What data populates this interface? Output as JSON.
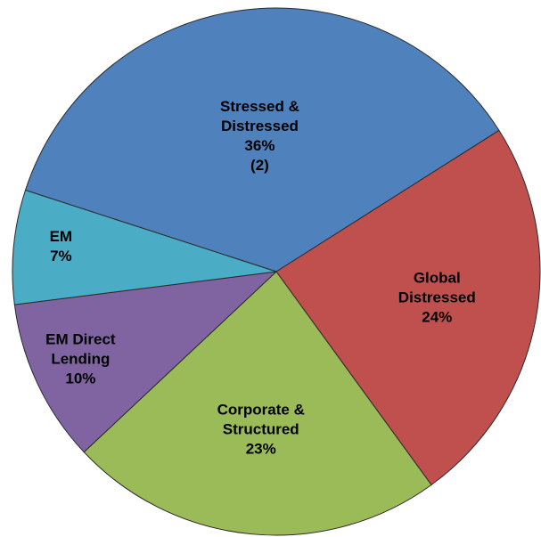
{
  "chart_data": {
    "type": "pie",
    "categories": [
      "Stressed & Distressed",
      "Global Distressed",
      "Corporate & Structured",
      "EM Direct Lending",
      "EM"
    ],
    "values": [
      36,
      24,
      23,
      10,
      7
    ],
    "value_labels": [
      "36%",
      "24%",
      "23%",
      "10%",
      "7%"
    ],
    "colors": [
      "#4f81bd",
      "#c0504d",
      "#9bbb59",
      "#8064a2",
      "#4bacc6"
    ],
    "annotations": [
      {
        "category": 0,
        "text": "(2)"
      }
    ]
  }
}
